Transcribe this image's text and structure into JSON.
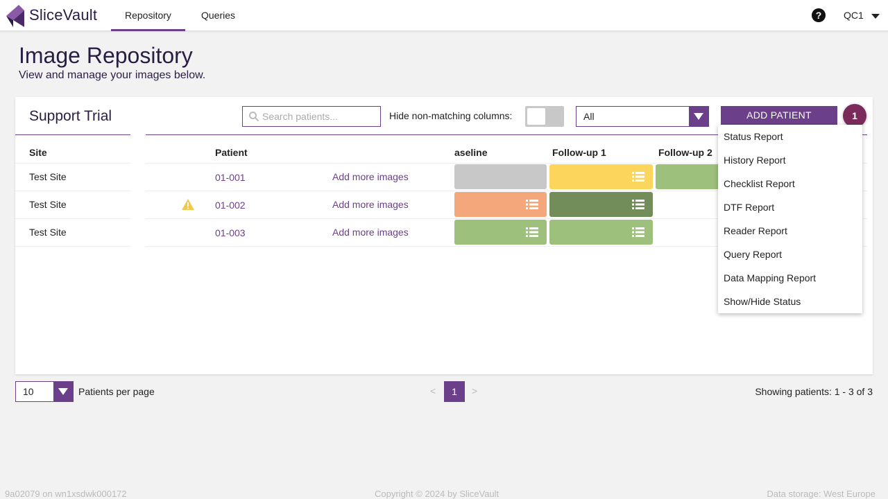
{
  "nav": {
    "brand": "SliceVault",
    "tabs": [
      {
        "label": "Repository",
        "active": true
      },
      {
        "label": "Queries",
        "active": false
      }
    ],
    "help": "?",
    "user": "QC1"
  },
  "page": {
    "title": "Image Repository",
    "subtitle": "View and manage your images below."
  },
  "card": {
    "trial_name": "Support Trial",
    "search_placeholder": "Search patients...",
    "hide_label": "Hide non-matching columns:",
    "filter_value": "All",
    "add_button": "ADD PATIENT",
    "badge": "1"
  },
  "table": {
    "headers": {
      "site": "Site",
      "patient": "Patient",
      "baseline": "aseline",
      "followup1": "Follow-up 1",
      "followup2": "Follow-up 2"
    },
    "rows": [
      {
        "site": "Test Site",
        "patient": "01-001",
        "add": "Add more images",
        "warning": false,
        "cells": [
          {
            "color": "#c8c8c8",
            "list": false
          },
          {
            "color": "#fcd65c",
            "list": true
          },
          {
            "color": "#9dc17d",
            "list": false
          }
        ]
      },
      {
        "site": "Test Site",
        "patient": "01-002",
        "add": "Add more images",
        "warning": true,
        "cells": [
          {
            "color": "#f4a77a",
            "list": true
          },
          {
            "color": "#728c5a",
            "list": true
          },
          null
        ]
      },
      {
        "site": "Test Site",
        "patient": "01-003",
        "add": "Add more images",
        "warning": false,
        "cells": [
          {
            "color": "#9dc17d",
            "list": true
          },
          {
            "color": "#9dc17d",
            "list": true
          },
          null
        ]
      }
    ]
  },
  "dropdown": {
    "items": [
      "Status Report",
      "History Report",
      "Checklist Report",
      "DTF Report",
      "Reader Report",
      "Query Report",
      "Data Mapping Report",
      "Show/Hide Status"
    ]
  },
  "pagination": {
    "per_page": "10",
    "per_page_label": "Patients per page",
    "prev": "<",
    "current": "1",
    "next": ">",
    "showing": "Showing patients: 1 - 3 of 3"
  },
  "footer": {
    "build": "9a02079 on wn1xsdwk000172",
    "copyright": "Copyright © 2024 by SliceVault",
    "storage": "Data storage: West Europe"
  },
  "colors": {
    "accent": "#6b3f8a",
    "badge": "#7a2b5c",
    "warning": "#f2c94c"
  }
}
